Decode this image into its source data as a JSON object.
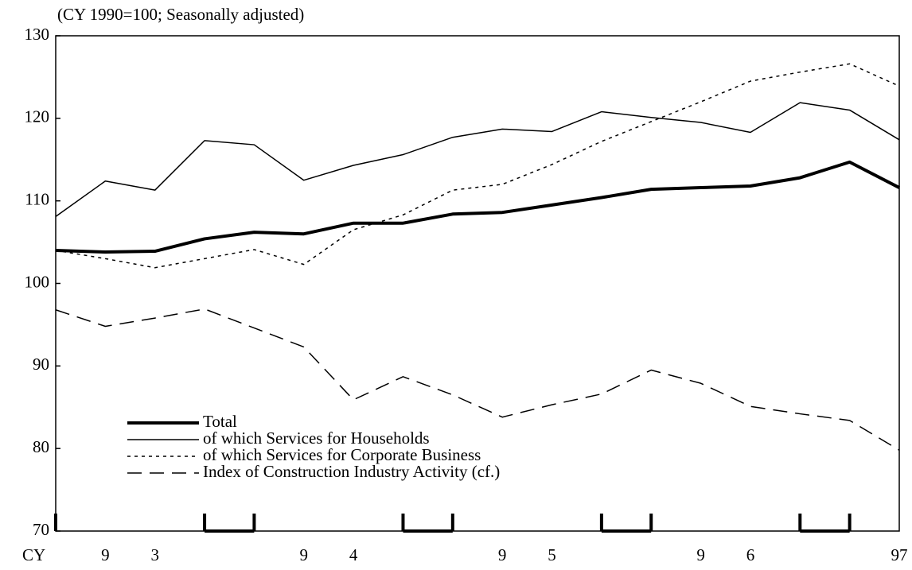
{
  "chart_data": {
    "type": "line",
    "subtitle": "(CY 1990=100; Seasonally adjusted)",
    "xlabel": "CY",
    "categories": [
      null,
      "9",
      "3",
      null,
      null,
      "9",
      "4",
      null,
      null,
      "9",
      "5",
      null,
      null,
      "9",
      "6",
      null,
      null,
      "97"
    ],
    "series": [
      {
        "name": "Total",
        "color": "#000000",
        "width": 4,
        "dash": "solid",
        "values": [
          104.0,
          103.8,
          103.9,
          105.4,
          106.2,
          106.0,
          107.3,
          107.3,
          108.4,
          108.6,
          109.5,
          110.4,
          111.4,
          111.6,
          111.8,
          112.8,
          114.7,
          111.6
        ]
      },
      {
        "name": "of which Services for Households",
        "color": "#000000",
        "width": 1.5,
        "dash": "solid",
        "values": [
          108.1,
          112.4,
          111.3,
          117.3,
          116.8,
          112.5,
          114.3,
          115.6,
          117.7,
          118.7,
          118.4,
          120.8,
          120.1,
          119.5,
          118.3,
          121.9,
          121.0,
          117.4
        ]
      },
      {
        "name": "of which Services for Corporate Business",
        "color": "#000000",
        "width": 1.5,
        "dash": "dotted",
        "values": [
          104.0,
          103.0,
          101.9,
          103.0,
          104.1,
          102.3,
          106.5,
          108.3,
          111.3,
          112.0,
          114.4,
          117.2,
          119.6,
          122.0,
          124.5,
          125.6,
          126.6,
          123.9
        ]
      },
      {
        "name": "Index of Construction Industry Activity (cf.)",
        "color": "#000000",
        "width": 1.5,
        "dash": "dashed",
        "values": [
          96.8,
          94.8,
          95.8,
          96.9,
          94.6,
          92.3,
          85.9,
          88.7,
          86.5,
          83.8,
          85.3,
          86.6,
          89.5,
          87.9,
          85.1,
          84.2,
          83.4,
          79.8
        ]
      }
    ],
    "ylim": [
      70,
      130
    ],
    "yticks": [
      70,
      80,
      90,
      100,
      110,
      120,
      130
    ],
    "grid": false,
    "legend": "lower left"
  }
}
